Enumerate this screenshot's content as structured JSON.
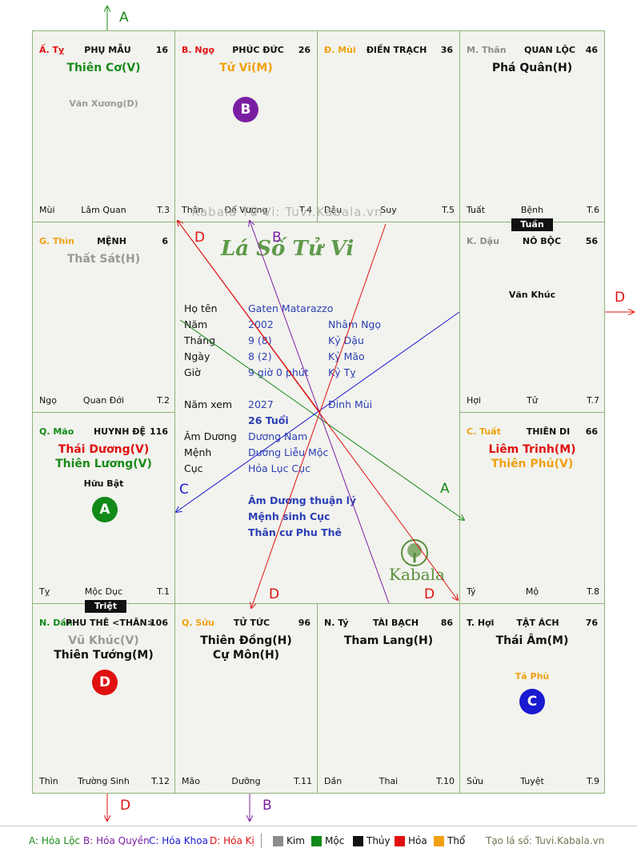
{
  "watermark": "Kabala Tử Vi: Tuvi.Kabala.vn",
  "chart_title": "Lá Số Tử Vi",
  "kabala_logo": "Kabala",
  "cells": {
    "ty_top": {
      "can_chi": "Ấ. Tỵ",
      "palace": "PHỤ MẪU",
      "num": "16",
      "star1": "Thiên Cơ(V)",
      "minor": "Văn Xương(D)",
      "bl": "Mùi",
      "bm": "Lâm Quan",
      "br": "T.3"
    },
    "ngo_top": {
      "can_chi": "B. Ngọ",
      "palace": "PHÚC ĐỨC",
      "num": "26",
      "star1": "Tử Vi(M)",
      "circle": "B",
      "bl": "Thân",
      "bm": "Đế Vượng",
      "br": "T.4"
    },
    "mui_top": {
      "can_chi": "Đ. Mùi",
      "palace": "ĐIỀN TRẠCH",
      "num": "36",
      "bl": "Dậu",
      "bm": "Suy",
      "br": "T.5"
    },
    "than_top": {
      "can_chi": "M. Thân",
      "palace": "QUAN LỘC",
      "num": "46",
      "star1": "Phá Quân(H)",
      "bl": "Tuất",
      "bm": "Bệnh",
      "br": "T.6"
    },
    "thin": {
      "can_chi": "G. Thìn",
      "palace": "MỆNH",
      "num": "6",
      "star1": "Thất Sát(H)",
      "bl": "Ngọ",
      "bm": "Quan Đới",
      "br": "T.2"
    },
    "dau": {
      "can_chi": "K. Dậu",
      "palace": "NÔ BỘC",
      "num": "56",
      "minor": "Văn Khúc",
      "bl": "Hợi",
      "bm": "Tử",
      "br": "T.7"
    },
    "mao": {
      "can_chi": "Q. Mão",
      "palace": "HUYNH ĐỆ",
      "num": "116",
      "star1": "Thái Dương(V)",
      "star2": "Thiên Lương(V)",
      "minor": "Hữu Bật",
      "circle": "A",
      "bl": "Tỵ",
      "bm": "Mộc Dục",
      "br": "T.1"
    },
    "tuat": {
      "can_chi": "C. Tuất",
      "palace": "THIÊN DI",
      "num": "66",
      "star1": "Liêm Trinh(M)",
      "star2": "Thiên Phủ(V)",
      "bl": "Tý",
      "bm": "Mộ",
      "br": "T.8"
    },
    "dan": {
      "can_chi": "N. Dần",
      "palace": "PHU THÊ <THÂN>",
      "num": "106",
      "star1": "Vũ Khúc(V)",
      "star2": "Thiên Tướng(M)",
      "circle": "D",
      "bl": "Thìn",
      "bm": "Trường Sinh",
      "br": "T.12"
    },
    "suu": {
      "can_chi": "Q. Sửu",
      "palace": "TỬ TỨC",
      "num": "96",
      "star1": "Thiên Đồng(H)",
      "star2": "Cự Môn(H)",
      "bl": "Mão",
      "bm": "Dưỡng",
      "br": "T.11"
    },
    "ty_bot": {
      "can_chi": "N. Tý",
      "palace": "TÀI BẠCH",
      "num": "86",
      "star1": "Tham Lang(H)",
      "bl": "Dần",
      "bm": "Thai",
      "br": "T.10"
    },
    "hoi": {
      "can_chi": "T. Hợi",
      "palace": "TẬT ÁCH",
      "num": "76",
      "star1": "Thái Âm(M)",
      "minor": "Tả Phù",
      "circle": "C",
      "bl": "Sửu",
      "bm": "Tuyệt",
      "br": "T.9"
    }
  },
  "badges": {
    "tuan": "Tuần",
    "triet": "Triệt"
  },
  "info": {
    "ho_ten_label": "Họ tên",
    "ho_ten": "Gaten Matarazzo",
    "nam_label": "Năm",
    "nam": "2002",
    "nam_cc": "Nhâm Ngọ",
    "thang_label": "Tháng",
    "thang": "9  (8)",
    "thang_cc": "Kỷ Dậu",
    "ngay_label": "Ngày",
    "ngay": "8  (2)",
    "ngay_cc": "Kỷ Mão",
    "gio_label": "Giờ",
    "gio": "9 giờ 0 phút",
    "gio_cc": "Kỷ Tỵ",
    "nam_xem_label": "Năm xem",
    "nam_xem": "2027",
    "nam_xem_cc": "Đinh Mùi",
    "tuoi": "26 Tuổi",
    "am_duong_label": "Âm Dương",
    "am_duong": "Dương Nam",
    "menh_label": "Mệnh",
    "menh": "Dương Liễu Mộc",
    "cuc_label": "Cục",
    "cuc": "Hỏa Lục Cục",
    "note1": "Âm Dương thuận lý",
    "note2": "Mệnh sinh Cục",
    "note3": "Thân cư Phu Thê"
  },
  "arrow_labels": {
    "a": "A",
    "b": "B",
    "c": "C",
    "d": "D"
  },
  "legend": {
    "a": "A: Hóa Lộc",
    "b": "B: Hóa Quyền",
    "c": "C: Hóa Khoa",
    "d": "D: Hóa Kị",
    "kim": "Kim",
    "moc": "Mộc",
    "thuy": "Thủy",
    "hoa": "Hỏa",
    "tho": "Thổ",
    "site": "Tạo lá số: Tuvi.Kabala.vn"
  },
  "colors": {
    "kim": "#8c8c8c",
    "moc": "#118a1a",
    "thuy": "#111111",
    "hoa": "#e01010",
    "tho": "#f0a010",
    "hoa_loc": "#1a8a1a",
    "hoa_quyen": "#7b1fa2",
    "hoa_khoa": "#1a1ad0",
    "hoa_ki": "#e01010"
  }
}
